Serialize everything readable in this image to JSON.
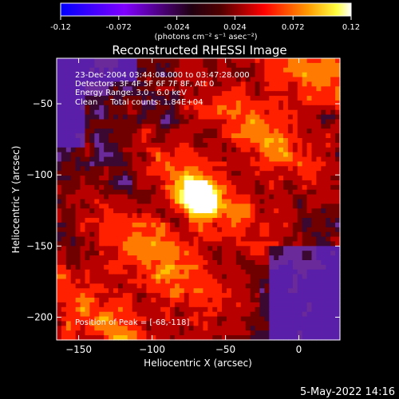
{
  "colorbar": {
    "ticks": [
      "-0.12",
      "-0.072",
      "-0.024",
      "0.024",
      "0.072",
      "0.12"
    ],
    "tick_values": [
      -0.12,
      -0.072,
      -0.024,
      0.024,
      0.072,
      0.12
    ],
    "range": [
      -0.12,
      0.12
    ],
    "units": "(photons cm⁻² s⁻¹ asec⁻²)"
  },
  "chart_data": {
    "type": "heatmap",
    "title": "Reconstructed RHESSI Image",
    "xlabel": "Heliocentric X (arcsec)",
    "ylabel": "Heliocentric Y (arcsec)",
    "xlim": [
      -165,
      28
    ],
    "ylim": [
      -216,
      -18
    ],
    "x_ticks": [
      -150,
      -100,
      -50,
      0
    ],
    "y_ticks": [
      -50,
      -100,
      -150,
      -200
    ],
    "x_tick_labels": [
      "−150",
      "−100",
      "−50",
      "0"
    ],
    "y_tick_labels": [
      "−50",
      "−100",
      "−150",
      "−200"
    ],
    "annotations": [
      "23-Dec-2004 03:44:08.000 to 03:47:28.000",
      "Detectors: 3F 4F 5F 6F 7F 8F, Att 0",
      "Energy Range: 3.0 - 6.0 keV",
      "Clean     Total counts: 1.84E+04"
    ],
    "peak_label": "Position of Peak = [-68,-118]",
    "peak": [
      -68,
      -118
    ],
    "peak_value": 0.12,
    "colormap": [
      "#0000ff",
      "#7a00ff",
      "#ff0000",
      "#ff7f00",
      "#ffff00",
      "#ffffff"
    ]
  },
  "footer": {
    "date": "5-May-2022 14:16"
  }
}
